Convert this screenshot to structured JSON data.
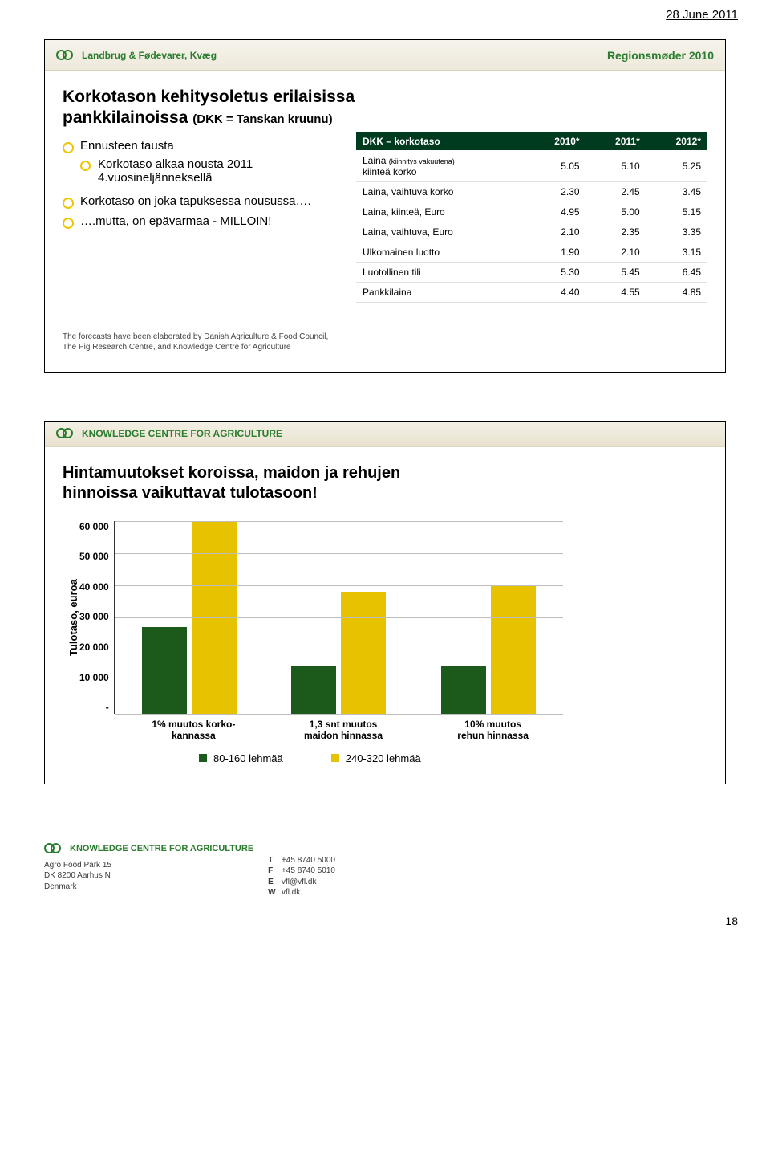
{
  "page_header": "28 June 2011",
  "page_number": "18",
  "slide1": {
    "brand_left": "Landbrug & Fødevarer, Kvæg",
    "brand_right": "Regionsmøder 2010",
    "title_line1": "Korkotason kehitysoletus erilaisissa",
    "title_line2_a": "pankkilainoissa",
    "title_line2_b": "(DKK = Tanskan kruunu)",
    "bullets": {
      "b1": "Ennusteen tausta",
      "b1a": "Korkotaso alkaa nousta 2011 4.vuosineljänneksellä",
      "b2": "Korkotaso on joka tapuksessa nousussa….",
      "b3": "….mutta, on epävarmaa - MILLOIN!"
    },
    "table": {
      "headers": [
        "DKK – korkotaso",
        "2010*",
        "2011*",
        "2012*"
      ],
      "rows": [
        {
          "label_main": "Laina",
          "label_sub": "(kiinnitys vakuutena)",
          "label_line2": "kiinteä korko",
          "v1": "5.05",
          "v2": "5.10",
          "v3": "5.25"
        },
        {
          "label_main": "Laina, vaihtuva korko",
          "label_sub": "",
          "label_line2": "",
          "v1": "2.30",
          "v2": "2.45",
          "v3": "3.45"
        },
        {
          "label_main": "Laina, kiinteä, Euro",
          "label_sub": "",
          "label_line2": "",
          "v1": "4.95",
          "v2": "5.00",
          "v3": "5.15"
        },
        {
          "label_main": "Laina, vaihtuva, Euro",
          "label_sub": "",
          "label_line2": "",
          "v1": "2.10",
          "v2": "2.35",
          "v3": "3.35"
        },
        {
          "label_main": "Ulkomainen luotto",
          "label_sub": "",
          "label_line2": "",
          "v1": "1.90",
          "v2": "2.10",
          "v3": "3.15"
        },
        {
          "label_main": "Luotollinen tili",
          "label_sub": "",
          "label_line2": "",
          "v1": "5.30",
          "v2": "5.45",
          "v3": "6.45"
        },
        {
          "label_main": "Pankkilaina",
          "label_sub": "",
          "label_line2": "",
          "v1": "4.40",
          "v2": "4.55",
          "v3": "4.85"
        }
      ],
      "header_bg": "#003a1f"
    },
    "footnote_l1": "The forecasts have been elaborated by Danish Agriculture & Food Council,",
    "footnote_l2": "The Pig Research Centre, and Knowledge Centre for Agriculture"
  },
  "slide2": {
    "brand": "KNOWLEDGE CENTRE FOR AGRICULTURE",
    "title_l1": "Hintamuutokset koroissa, maidon ja rehujen",
    "title_l2": "hinnoissa vaikuttavat tulotasoon!",
    "y_axis_label": "Tulotaso, euroa",
    "y_ticks": [
      "60 000",
      "50 000",
      "40 000",
      "30 000",
      "20 000",
      "10 000",
      "-"
    ],
    "y_max": 60000,
    "chart": {
      "colors": {
        "series_a": "#1c5a1b",
        "series_b": "#e6c200",
        "grid": "#bdbdbd"
      },
      "groups": [
        {
          "label": "1% muutos korko-\nkannassa",
          "a": 27000,
          "b": 60000
        },
        {
          "label": "1,3 snt muutos\nmaidon hinnassa",
          "a": 15000,
          "b": 38000
        },
        {
          "label": "10% muutos\nrehun hinnassa",
          "a": 15000,
          "b": 40000
        }
      ]
    },
    "legend": {
      "a": "80-160 lehmää",
      "b": "240-320 lehmää"
    }
  },
  "footer": {
    "brand": "KNOWLEDGE CENTRE FOR AGRICULTURE",
    "addr_l1": "Agro Food Park 15",
    "addr_l2": "DK 8200 Aarhus N",
    "addr_l3": "Denmark",
    "tel": "+45 8740 5000",
    "fax": "+45 8740 5010",
    "email": "vfl@vfl.dk",
    "web": "vfl.dk"
  }
}
